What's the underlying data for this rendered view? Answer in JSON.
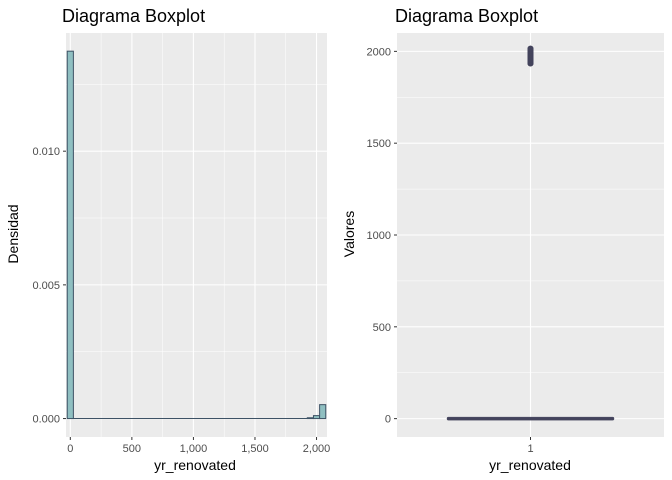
{
  "colors": {
    "panel_bg": "#ebebeb",
    "grid": "#ffffff",
    "hist_fill": "#8fbfc1",
    "hist_stroke": "#3d5265",
    "box_color": "#44445d",
    "tick_text": "#4d4d4d"
  },
  "chart_data": [
    {
      "type": "bar",
      "subtype": "histogram",
      "title": "Diagrama Boxplot",
      "xlabel": "yr_renovated",
      "ylabel": "Densidad",
      "xlim": [
        -35,
        2085
      ],
      "ylim": [
        -0.00069,
        0.01442
      ],
      "bin_width": 50,
      "bins": [
        {
          "x": 0,
          "density": 0.01374
        },
        {
          "x": 1950,
          "density": 3e-05
        },
        {
          "x": 2000,
          "density": 0.00011
        },
        {
          "x": 2050,
          "density": 0.00052
        }
      ],
      "baseline_range": [
        25,
        1925
      ],
      "x_ticks": [
        {
          "value": 0,
          "label": "0"
        },
        {
          "value": 500,
          "label": "500"
        },
        {
          "value": 1000,
          "label": "1,000"
        },
        {
          "value": 1500,
          "label": "1,500"
        },
        {
          "value": 2000,
          "label": "2,000"
        }
      ],
      "y_ticks": [
        {
          "value": 0,
          "label": "0.000"
        },
        {
          "value": 0.005,
          "label": "0.005"
        },
        {
          "value": 0.01,
          "label": "0.010"
        }
      ],
      "grid": true
    },
    {
      "type": "boxplot",
      "title": "Diagrama Boxplot",
      "xlabel": "yr_renovated",
      "ylabel": "Valores",
      "xlim": [
        0.4,
        1.6
      ],
      "ylim": [
        -100,
        2100
      ],
      "category": "1",
      "box": {
        "min": 0,
        "q1": 0,
        "median": 0,
        "q3": 0,
        "max": 0,
        "box_width": 0.75
      },
      "outlier_range": [
        1934,
        2015
      ],
      "x_ticks": [
        {
          "value": 1,
          "label": "1"
        }
      ],
      "y_ticks": [
        {
          "value": 0,
          "label": "0"
        },
        {
          "value": 500,
          "label": "500"
        },
        {
          "value": 1000,
          "label": "1000"
        },
        {
          "value": 1500,
          "label": "1500"
        },
        {
          "value": 2000,
          "label": "2000"
        }
      ],
      "grid": true
    }
  ]
}
